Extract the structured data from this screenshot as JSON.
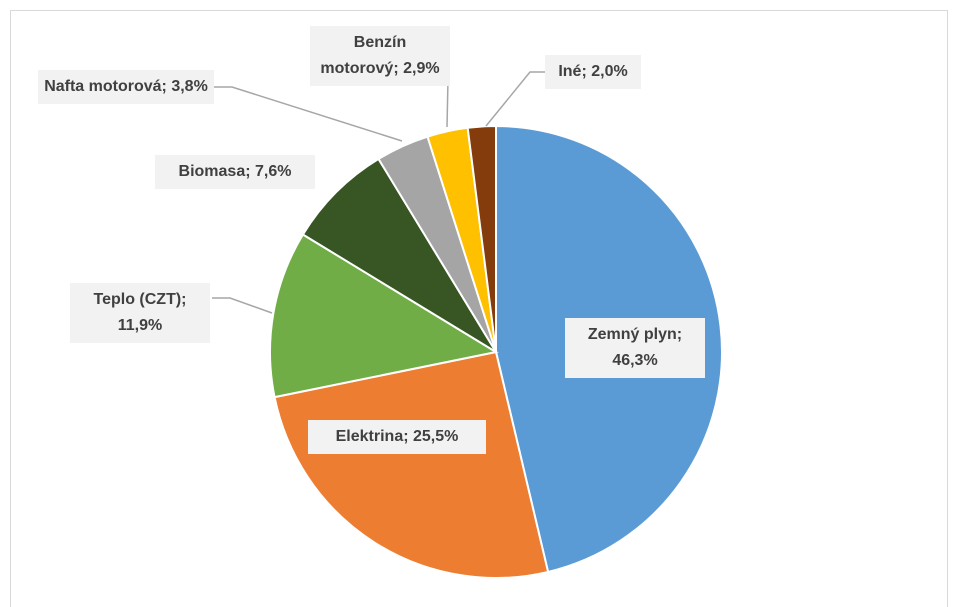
{
  "chart_data": {
    "type": "pie",
    "categories": [
      "Zemný plyn",
      "Elektrina",
      "Teplo (CZT)",
      "Biomasa",
      "Nafta motorová",
      "Benzín motorový",
      "Iné"
    ],
    "values": [
      46.3,
      25.5,
      11.9,
      7.6,
      3.8,
      2.9,
      2.0
    ],
    "value_labels": [
      "46,3%",
      "25,5%",
      "11,9%",
      "7,6%",
      "3,8%",
      "2,9%",
      "2,0%"
    ],
    "label_separator": ";",
    "colors": [
      "#5b9bd5",
      "#ed7d31",
      "#70ad47",
      "#375623",
      "#a5a5a5",
      "#ffc000",
      "#843c0c"
    ]
  }
}
